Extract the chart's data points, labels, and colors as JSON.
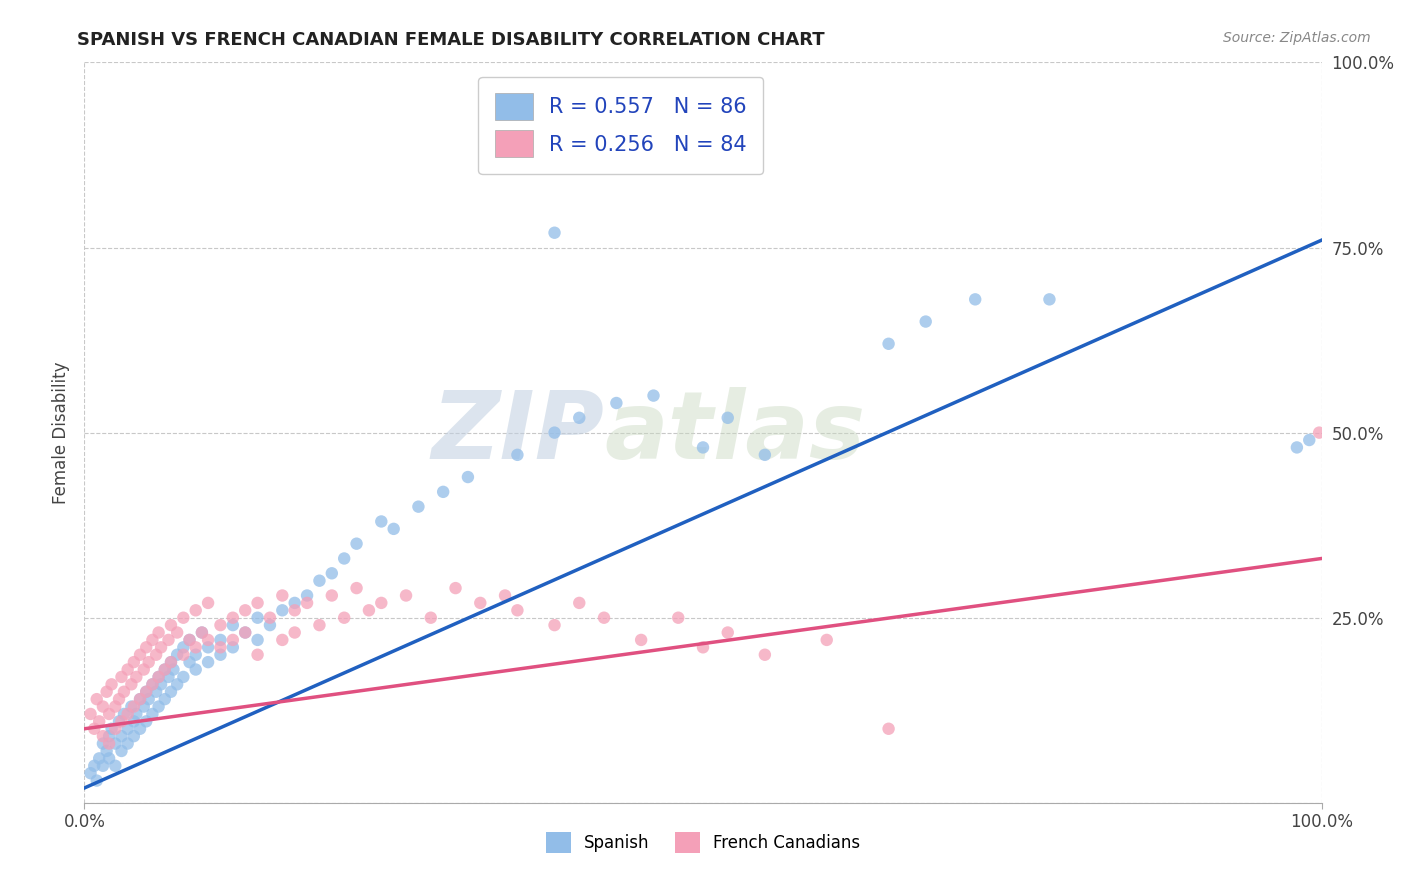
{
  "title": "SPANISH VS FRENCH CANADIAN FEMALE DISABILITY CORRELATION CHART",
  "source": "Source: ZipAtlas.com",
  "ylabel": "Female Disability",
  "xlim": [
    0,
    1
  ],
  "ylim": [
    0,
    1
  ],
  "spanish_color": "#92bde8",
  "french_color": "#f4a0b8",
  "spanish_line_color": "#2060c0",
  "french_line_color": "#e05080",
  "spanish_R": 0.557,
  "spanish_N": 86,
  "french_R": 0.256,
  "french_N": 84,
  "watermark_zip": "ZIP",
  "watermark_atlas": "atlas",
  "background_color": "#ffffff",
  "grid_color": "#c8c8c8",
  "sp_line_x0": 0.0,
  "sp_line_y0": 0.02,
  "sp_line_x1": 1.0,
  "sp_line_y1": 0.76,
  "fr_line_x0": 0.0,
  "fr_line_y0": 0.1,
  "fr_line_x1": 1.0,
  "fr_line_y1": 0.33,
  "spanish_scatter": [
    [
      0.005,
      0.04
    ],
    [
      0.008,
      0.05
    ],
    [
      0.01,
      0.03
    ],
    [
      0.012,
      0.06
    ],
    [
      0.015,
      0.08
    ],
    [
      0.015,
      0.05
    ],
    [
      0.018,
      0.07
    ],
    [
      0.02,
      0.09
    ],
    [
      0.02,
      0.06
    ],
    [
      0.022,
      0.1
    ],
    [
      0.025,
      0.08
    ],
    [
      0.025,
      0.05
    ],
    [
      0.028,
      0.11
    ],
    [
      0.03,
      0.09
    ],
    [
      0.03,
      0.07
    ],
    [
      0.032,
      0.12
    ],
    [
      0.035,
      0.1
    ],
    [
      0.035,
      0.08
    ],
    [
      0.038,
      0.13
    ],
    [
      0.04,
      0.11
    ],
    [
      0.04,
      0.09
    ],
    [
      0.042,
      0.12
    ],
    [
      0.045,
      0.14
    ],
    [
      0.045,
      0.1
    ],
    [
      0.048,
      0.13
    ],
    [
      0.05,
      0.15
    ],
    [
      0.05,
      0.11
    ],
    [
      0.052,
      0.14
    ],
    [
      0.055,
      0.16
    ],
    [
      0.055,
      0.12
    ],
    [
      0.058,
      0.15
    ],
    [
      0.06,
      0.13
    ],
    [
      0.06,
      0.17
    ],
    [
      0.062,
      0.16
    ],
    [
      0.065,
      0.18
    ],
    [
      0.065,
      0.14
    ],
    [
      0.068,
      0.17
    ],
    [
      0.07,
      0.19
    ],
    [
      0.07,
      0.15
    ],
    [
      0.072,
      0.18
    ],
    [
      0.075,
      0.2
    ],
    [
      0.075,
      0.16
    ],
    [
      0.08,
      0.21
    ],
    [
      0.08,
      0.17
    ],
    [
      0.085,
      0.19
    ],
    [
      0.085,
      0.22
    ],
    [
      0.09,
      0.2
    ],
    [
      0.09,
      0.18
    ],
    [
      0.095,
      0.23
    ],
    [
      0.1,
      0.21
    ],
    [
      0.1,
      0.19
    ],
    [
      0.11,
      0.22
    ],
    [
      0.11,
      0.2
    ],
    [
      0.12,
      0.24
    ],
    [
      0.12,
      0.21
    ],
    [
      0.13,
      0.23
    ],
    [
      0.14,
      0.25
    ],
    [
      0.14,
      0.22
    ],
    [
      0.15,
      0.24
    ],
    [
      0.16,
      0.26
    ],
    [
      0.17,
      0.27
    ],
    [
      0.18,
      0.28
    ],
    [
      0.19,
      0.3
    ],
    [
      0.2,
      0.31
    ],
    [
      0.21,
      0.33
    ],
    [
      0.22,
      0.35
    ],
    [
      0.24,
      0.38
    ],
    [
      0.25,
      0.37
    ],
    [
      0.27,
      0.4
    ],
    [
      0.29,
      0.42
    ],
    [
      0.31,
      0.44
    ],
    [
      0.35,
      0.47
    ],
    [
      0.38,
      0.5
    ],
    [
      0.4,
      0.52
    ],
    [
      0.43,
      0.54
    ],
    [
      0.46,
      0.55
    ],
    [
      0.5,
      0.48
    ],
    [
      0.52,
      0.52
    ],
    [
      0.55,
      0.47
    ],
    [
      0.65,
      0.62
    ],
    [
      0.68,
      0.65
    ],
    [
      0.72,
      0.68
    ],
    [
      0.78,
      0.68
    ],
    [
      0.38,
      0.77
    ],
    [
      0.98,
      0.48
    ],
    [
      0.99,
      0.49
    ]
  ],
  "french_scatter": [
    [
      0.005,
      0.12
    ],
    [
      0.008,
      0.1
    ],
    [
      0.01,
      0.14
    ],
    [
      0.012,
      0.11
    ],
    [
      0.015,
      0.13
    ],
    [
      0.015,
      0.09
    ],
    [
      0.018,
      0.15
    ],
    [
      0.02,
      0.12
    ],
    [
      0.02,
      0.08
    ],
    [
      0.022,
      0.16
    ],
    [
      0.025,
      0.13
    ],
    [
      0.025,
      0.1
    ],
    [
      0.028,
      0.14
    ],
    [
      0.03,
      0.17
    ],
    [
      0.03,
      0.11
    ],
    [
      0.032,
      0.15
    ],
    [
      0.035,
      0.18
    ],
    [
      0.035,
      0.12
    ],
    [
      0.038,
      0.16
    ],
    [
      0.04,
      0.19
    ],
    [
      0.04,
      0.13
    ],
    [
      0.042,
      0.17
    ],
    [
      0.045,
      0.2
    ],
    [
      0.045,
      0.14
    ],
    [
      0.048,
      0.18
    ],
    [
      0.05,
      0.21
    ],
    [
      0.05,
      0.15
    ],
    [
      0.052,
      0.19
    ],
    [
      0.055,
      0.22
    ],
    [
      0.055,
      0.16
    ],
    [
      0.058,
      0.2
    ],
    [
      0.06,
      0.23
    ],
    [
      0.06,
      0.17
    ],
    [
      0.062,
      0.21
    ],
    [
      0.065,
      0.18
    ],
    [
      0.068,
      0.22
    ],
    [
      0.07,
      0.24
    ],
    [
      0.07,
      0.19
    ],
    [
      0.075,
      0.23
    ],
    [
      0.08,
      0.25
    ],
    [
      0.08,
      0.2
    ],
    [
      0.085,
      0.22
    ],
    [
      0.09,
      0.26
    ],
    [
      0.09,
      0.21
    ],
    [
      0.095,
      0.23
    ],
    [
      0.1,
      0.27
    ],
    [
      0.1,
      0.22
    ],
    [
      0.11,
      0.24
    ],
    [
      0.11,
      0.21
    ],
    [
      0.12,
      0.25
    ],
    [
      0.12,
      0.22
    ],
    [
      0.13,
      0.26
    ],
    [
      0.13,
      0.23
    ],
    [
      0.14,
      0.27
    ],
    [
      0.14,
      0.2
    ],
    [
      0.15,
      0.25
    ],
    [
      0.16,
      0.28
    ],
    [
      0.16,
      0.22
    ],
    [
      0.17,
      0.26
    ],
    [
      0.17,
      0.23
    ],
    [
      0.18,
      0.27
    ],
    [
      0.19,
      0.24
    ],
    [
      0.2,
      0.28
    ],
    [
      0.21,
      0.25
    ],
    [
      0.22,
      0.29
    ],
    [
      0.23,
      0.26
    ],
    [
      0.24,
      0.27
    ],
    [
      0.26,
      0.28
    ],
    [
      0.28,
      0.25
    ],
    [
      0.3,
      0.29
    ],
    [
      0.32,
      0.27
    ],
    [
      0.34,
      0.28
    ],
    [
      0.35,
      0.26
    ],
    [
      0.38,
      0.24
    ],
    [
      0.4,
      0.27
    ],
    [
      0.42,
      0.25
    ],
    [
      0.45,
      0.22
    ],
    [
      0.48,
      0.25
    ],
    [
      0.5,
      0.21
    ],
    [
      0.52,
      0.23
    ],
    [
      0.55,
      0.2
    ],
    [
      0.6,
      0.22
    ],
    [
      0.65,
      0.1
    ],
    [
      0.998,
      0.5
    ]
  ]
}
